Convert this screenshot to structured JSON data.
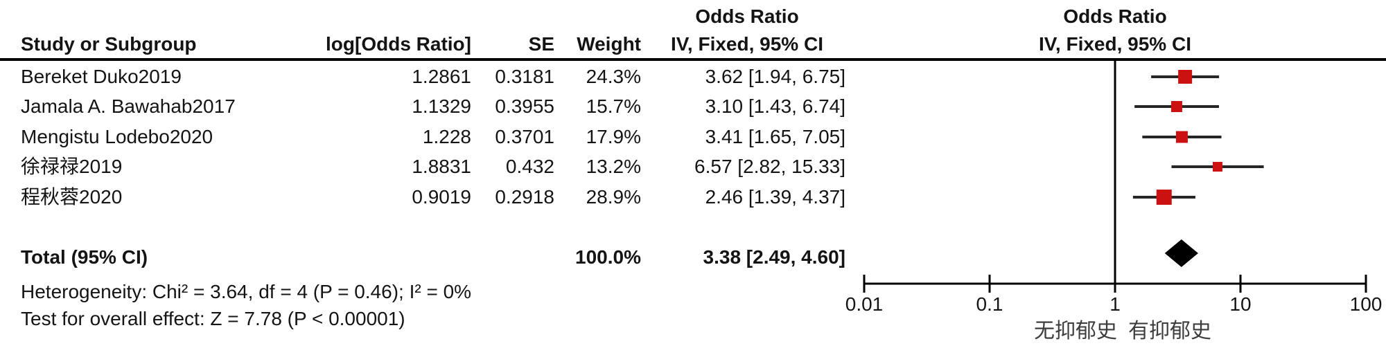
{
  "headers": {
    "left_effect_title": "Odds Ratio",
    "left_model_title": "IV, Fixed, 95% CI",
    "right_effect_title": "Odds Ratio",
    "right_model_title": "IV, Fixed, 95% CI"
  },
  "columns": {
    "study": "Study or Subgroup",
    "log_or": "log[Odds Ratio]",
    "se": "SE",
    "weight": "Weight"
  },
  "footer": {
    "heterogeneity": "Heterogeneity: Chi² = 3.64, df = 4 (P = 0.46); I² = 0%",
    "overall_effect": "Test for overall effect: Z = 7.78 (P < 0.00001)"
  },
  "chart_data": {
    "type": "scatter",
    "subtype": "forest-plot",
    "title": "Odds Ratio IV, Fixed, 95% CI",
    "x_scale": "log",
    "x_range": [
      0.01,
      100
    ],
    "x_ticks": [
      0.01,
      0.1,
      1,
      10,
      100
    ],
    "x_tick_labels": [
      "0.01",
      "0.1",
      "1",
      "10",
      "100"
    ],
    "axis_left_label": "无抑郁史",
    "axis_right_label": "有抑郁史",
    "marker_color": "#CC1111",
    "ci_line_color": "#262626",
    "diamond_color": "#000000",
    "studies": [
      {
        "name": "Bereket Duko2019",
        "log_or": "1.2861",
        "se": "0.3181",
        "weight_label": "24.3%",
        "weight_pct": 24.3,
        "or": 3.62,
        "ci_low": 1.94,
        "ci_high": 6.75,
        "ci_label": "3.62 [1.94, 6.75]"
      },
      {
        "name": "Jamala A. Bawahab2017",
        "log_or": "1.1329",
        "se": "0.3955",
        "weight_label": "15.7%",
        "weight_pct": 15.7,
        "or": 3.1,
        "ci_low": 1.43,
        "ci_high": 6.74,
        "ci_label": "3.10 [1.43, 6.74]"
      },
      {
        "name": "Mengistu Lodebo2020",
        "log_or": "1.228",
        "se": "0.3701",
        "weight_label": "17.9%",
        "weight_pct": 17.9,
        "or": 3.41,
        "ci_low": 1.65,
        "ci_high": 7.05,
        "ci_label": "3.41 [1.65, 7.05]"
      },
      {
        "name": "徐禄禄2019",
        "log_or": "1.8831",
        "se": "0.432",
        "weight_label": "13.2%",
        "weight_pct": 13.2,
        "or": 6.57,
        "ci_low": 2.82,
        "ci_high": 15.33,
        "ci_label": "6.57 [2.82, 15.33]"
      },
      {
        "name": "程秋蓉2020",
        "log_or": "0.9019",
        "se": "0.2918",
        "weight_label": "28.9%",
        "weight_pct": 28.9,
        "or": 2.46,
        "ci_low": 1.39,
        "ci_high": 4.37,
        "ci_label": "2.46 [1.39, 4.37]"
      }
    ],
    "total": {
      "label": "Total (95% CI)",
      "weight_label": "100.0%",
      "weight_pct": 100.0,
      "or": 3.38,
      "ci_low": 2.49,
      "ci_high": 4.6,
      "ci_label": "3.38 [2.49, 4.60]"
    }
  }
}
